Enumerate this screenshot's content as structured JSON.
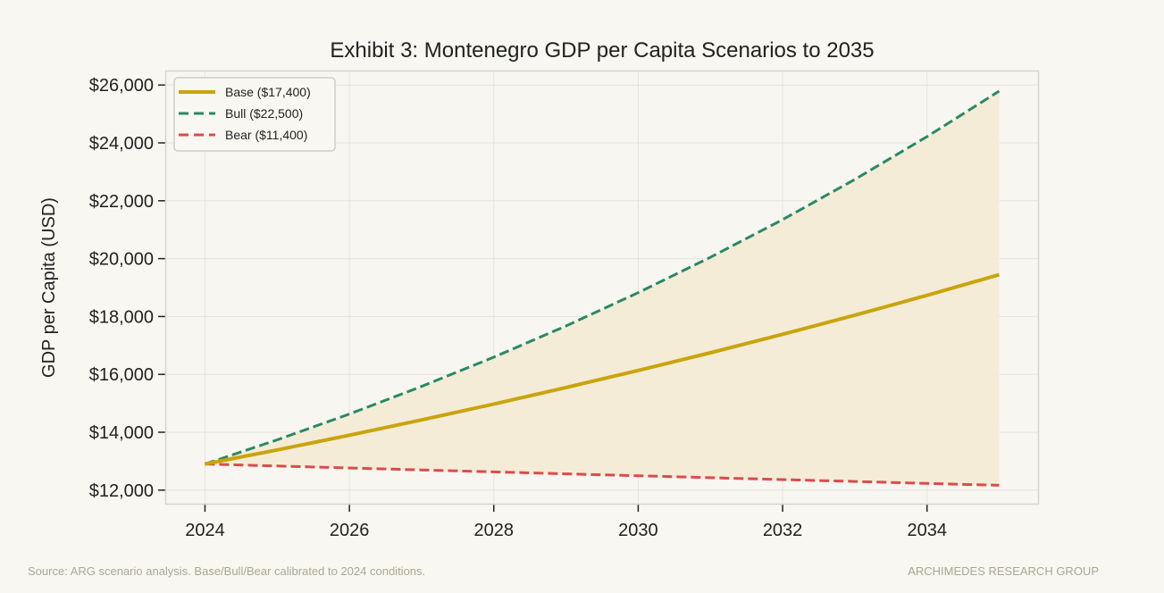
{
  "chart_data": {
    "type": "line",
    "title": "Exhibit 3: Montenegro GDP per Capita Scenarios to 2035",
    "xlabel": "",
    "ylabel": "GDP per Capita (USD)",
    "xlim": [
      2023.45,
      2035.55
    ],
    "ylim": [
      11500,
      26500
    ],
    "xticks": [
      2024,
      2026,
      2028,
      2030,
      2032,
      2034
    ],
    "yticks": [
      12000,
      14000,
      16000,
      18000,
      20000,
      22000,
      24000,
      26000
    ],
    "ytick_labels": [
      "$12,000",
      "$14,000",
      "$16,000",
      "$18,000",
      "$20,000",
      "$22,000",
      "$24,000",
      "$26,000"
    ],
    "grid": true,
    "legend_position": "top-left",
    "x": [
      2024,
      2025,
      2026,
      2027,
      2028,
      2029,
      2030,
      2031,
      2032,
      2033,
      2034,
      2035
    ],
    "series": [
      {
        "name": "Base ($17,400)",
        "color": "#c9a40c",
        "style": "solid",
        "values": [
          12900,
          13390,
          13899,
          14427,
          14976,
          15545,
          16135,
          16748,
          17385,
          18046,
          18731,
          19443
        ]
      },
      {
        "name": "Bull ($22,500)",
        "color": "#2a8964",
        "style": "dashed",
        "values": [
          12900,
          13739,
          14631,
          15582,
          16595,
          17674,
          18823,
          20046,
          21349,
          22737,
          24215,
          25789
        ]
      },
      {
        "name": "Bear ($11,400)",
        "color": "#dc4b4b",
        "style": "dashed",
        "values": [
          12900,
          12832,
          12764,
          12696,
          12629,
          12562,
          12496,
          12429,
          12363,
          12298,
          12233,
          12168
        ]
      }
    ],
    "band": {
      "between": [
        "Bear ($11,400)",
        "Bull ($22,500)"
      ],
      "color": "#f3ebd4"
    }
  },
  "footer": {
    "source": "Source: ARG scenario analysis. Base/Bull/Bear calibrated to 2024 conditions.",
    "brand": "ARCHIMEDES RESEARCH GROUP"
  }
}
